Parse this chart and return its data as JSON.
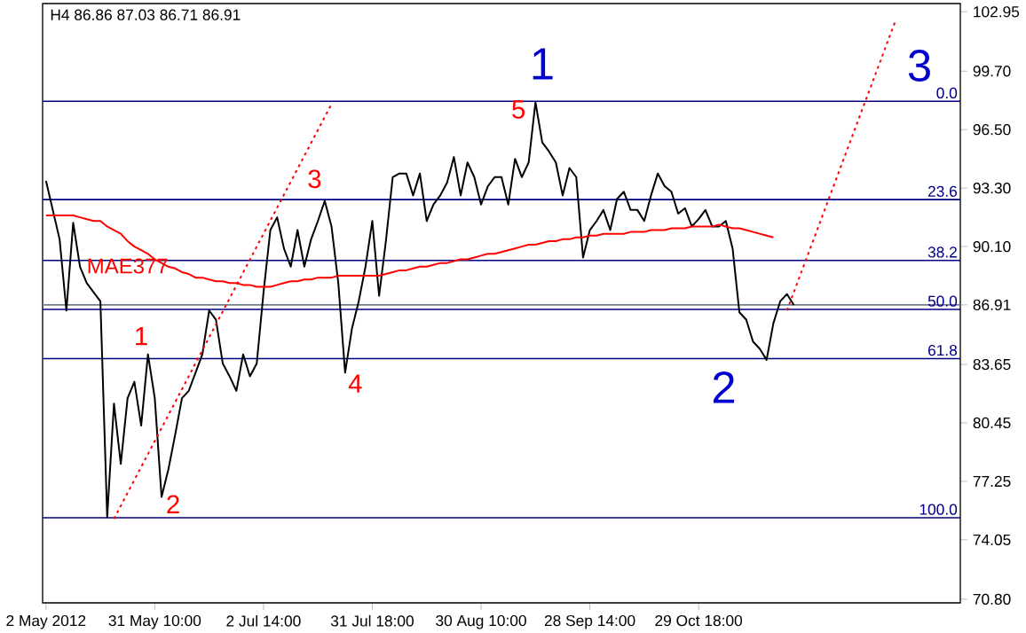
{
  "chart_data": {
    "type": "line",
    "title": "H4 86.86 87.03 86.71 86.91",
    "categories": [
      "2 May 2012",
      null,
      null,
      null,
      null,
      null,
      null,
      null,
      null,
      null,
      null,
      null,
      null,
      null,
      null,
      null,
      "31 May 10:00",
      null,
      null,
      null,
      null,
      null,
      null,
      null,
      null,
      null,
      null,
      null,
      null,
      null,
      null,
      null,
      "2 Jul 14:00",
      null,
      null,
      null,
      null,
      null,
      null,
      null,
      null,
      null,
      null,
      null,
      null,
      null,
      null,
      null,
      "31 Jul 18:00",
      null,
      null,
      null,
      null,
      null,
      null,
      null,
      null,
      null,
      null,
      null,
      null,
      null,
      null,
      null,
      "30 Aug 10:00",
      null,
      null,
      null,
      null,
      null,
      null,
      null,
      null,
      null,
      null,
      null,
      null,
      null,
      null,
      null,
      "28 Sep 14:00",
      null,
      null,
      null,
      null,
      null,
      null,
      null,
      null,
      null,
      null,
      null,
      null,
      null,
      null,
      null,
      "29 Oct 18:00",
      null,
      null,
      null,
      null,
      null,
      null,
      null,
      null,
      null,
      null,
      null,
      null,
      null,
      null,
      null,
      null,
      null,
      null,
      null,
      null,
      null,
      null,
      null,
      null,
      null,
      null,
      null,
      null,
      null,
      null,
      null,
      null,
      null,
      null,
      null,
      null,
      null,
      null
    ],
    "ylim": [
      70.6,
      103.4
    ],
    "yticks": [
      {
        "value": 102.95,
        "label": "102.95"
      },
      {
        "value": 99.7,
        "label": "99.70"
      },
      {
        "value": 96.5,
        "label": "96.50"
      },
      {
        "value": 93.3,
        "label": "93.30"
      },
      {
        "value": 90.1,
        "label": "90.10"
      },
      {
        "value": 86.91,
        "label": "86.91"
      },
      {
        "value": 83.65,
        "label": "83.65"
      },
      {
        "value": 80.45,
        "label": "80.45"
      },
      {
        "value": 77.25,
        "label": "77.25"
      },
      {
        "value": 74.05,
        "label": "74.05"
      },
      {
        "value": 70.8,
        "label": "70.80"
      }
    ],
    "series": [
      {
        "color": "#000000",
        "values": [
          93.7,
          92.1,
          90.5,
          86.6,
          91.4,
          89.0,
          88.1,
          87.6,
          87.1,
          75.3,
          81.5,
          78.2,
          81.8,
          82.7,
          80.3,
          84.2,
          81.8,
          76.4,
          77.9,
          79.8,
          81.8,
          82.2,
          83.2,
          84.2,
          86.6,
          86.1,
          83.7,
          83.0,
          82.2,
          84.2,
          83.0,
          83.7,
          87.6,
          91.0,
          91.7,
          90.0,
          89.0,
          91.0,
          89.0,
          90.5,
          91.5,
          92.6,
          91.2,
          88.1,
          83.2,
          85.6,
          87.1,
          89.0,
          91.5,
          87.4,
          90.4,
          93.9,
          94.1,
          94.1,
          92.9,
          94.1,
          91.5,
          92.4,
          92.9,
          93.6,
          95.0,
          92.9,
          94.7,
          93.9,
          92.4,
          93.4,
          93.9,
          93.9,
          92.4,
          94.9,
          93.9,
          94.7,
          98.0,
          95.8,
          95.3,
          94.7,
          92.9,
          94.4,
          93.9,
          89.5,
          91.0,
          91.5,
          92.1,
          91.0,
          92.7,
          93.1,
          92.1,
          92.1,
          91.5,
          92.9,
          94.1,
          93.4,
          93.1,
          91.9,
          92.2,
          91.2,
          91.6,
          92.1,
          91.2,
          91.2,
          91.5,
          90.0,
          86.5,
          86.1,
          84.9,
          84.5,
          83.9,
          85.9,
          87.1,
          87.5,
          86.9,
          null,
          null,
          null,
          null,
          null,
          null,
          null,
          null,
          null,
          null,
          null,
          null,
          null,
          null,
          null,
          null,
          null,
          null,
          null,
          null,
          null,
          null,
          null,
          null
        ]
      },
      {
        "name": "MAE377",
        "color": "#ff0000",
        "values": [
          91.8,
          91.8,
          91.8,
          91.8,
          91.8,
          91.7,
          91.6,
          91.5,
          91.5,
          91.2,
          91.0,
          90.8,
          90.4,
          90.1,
          89.9,
          89.7,
          89.4,
          89.2,
          89.0,
          88.9,
          88.7,
          88.6,
          88.4,
          88.4,
          88.3,
          88.2,
          88.2,
          88.1,
          88.1,
          88.0,
          88.0,
          87.9,
          87.9,
          87.9,
          88.0,
          88.1,
          88.2,
          88.2,
          88.3,
          88.3,
          88.4,
          88.4,
          88.4,
          88.5,
          88.5,
          88.5,
          88.5,
          88.5,
          88.5,
          88.5,
          88.6,
          88.7,
          88.8,
          88.8,
          88.9,
          89.0,
          89.0,
          89.1,
          89.2,
          89.2,
          89.3,
          89.4,
          89.4,
          89.5,
          89.6,
          89.7,
          89.7,
          89.8,
          89.9,
          90.0,
          90.1,
          90.2,
          90.2,
          90.3,
          90.4,
          90.4,
          90.5,
          90.5,
          90.6,
          90.6,
          90.7,
          90.7,
          90.8,
          90.8,
          90.8,
          90.8,
          90.9,
          90.9,
          90.9,
          91.0,
          91.0,
          91.0,
          91.1,
          91.1,
          91.1,
          91.2,
          91.2,
          91.2,
          91.2,
          91.3,
          91.2,
          91.1,
          91.1,
          91.0,
          90.9,
          90.8,
          90.7,
          90.6,
          null,
          null,
          null,
          null,
          null,
          null,
          null,
          null,
          null,
          null,
          null,
          null,
          null,
          null,
          null,
          null,
          null,
          null,
          null,
          null,
          null,
          null,
          null,
          null,
          null,
          null,
          null
        ]
      },
      {
        "color": "#ff0000",
        "line_style": "dotted",
        "values": [
          null,
          null,
          null,
          null,
          null,
          null,
          null,
          null,
          null,
          null,
          75.2,
          null,
          null,
          null,
          null,
          null,
          null,
          null,
          null,
          null,
          null,
          null,
          null,
          null,
          null,
          null,
          null,
          null,
          null,
          null,
          null,
          null,
          null,
          null,
          null,
          null,
          null,
          null,
          null,
          null,
          null,
          null,
          97.9,
          null,
          null,
          null,
          null,
          null,
          null,
          null,
          null,
          null,
          null,
          null,
          null,
          null,
          null,
          null,
          null,
          null,
          null,
          null,
          null,
          null,
          null,
          null,
          null,
          null,
          null,
          null,
          null,
          null,
          null,
          null,
          null,
          null,
          null,
          null,
          null,
          null,
          null,
          null,
          null,
          null,
          null,
          null,
          null,
          null,
          null,
          null,
          null,
          null,
          null,
          null,
          null,
          null,
          null,
          null,
          null,
          null,
          null,
          null,
          null,
          null,
          null,
          null,
          null,
          null,
          null,
          null,
          null,
          null,
          null,
          null,
          null,
          null,
          null,
          null,
          null,
          null,
          null,
          null,
          null,
          null,
          null,
          null,
          null,
          null,
          null,
          null,
          null,
          null,
          null,
          null,
          null
        ]
      },
      {
        "color": "#ff0000",
        "line_style": "dotted",
        "values": [
          null,
          null,
          null,
          null,
          null,
          null,
          null,
          null,
          null,
          null,
          null,
          null,
          null,
          null,
          null,
          null,
          null,
          null,
          null,
          null,
          null,
          null,
          null,
          null,
          null,
          null,
          null,
          null,
          null,
          null,
          null,
          null,
          null,
          null,
          null,
          null,
          null,
          null,
          null,
          null,
          null,
          null,
          null,
          null,
          null,
          null,
          null,
          null,
          null,
          null,
          null,
          null,
          null,
          null,
          null,
          null,
          null,
          null,
          null,
          null,
          null,
          null,
          null,
          null,
          null,
          null,
          null,
          null,
          null,
          null,
          null,
          null,
          null,
          null,
          null,
          null,
          null,
          null,
          null,
          null,
          null,
          null,
          null,
          null,
          null,
          null,
          null,
          null,
          null,
          null,
          null,
          null,
          null,
          null,
          null,
          null,
          null,
          null,
          null,
          null,
          null,
          null,
          null,
          null,
          null,
          null,
          null,
          null,
          null,
          86.6,
          null,
          null,
          null,
          null,
          null,
          null,
          null,
          null,
          null,
          null,
          null,
          null,
          null,
          null,
          null,
          102.5,
          null,
          null,
          null,
          null,
          null,
          null,
          null,
          null,
          null
        ]
      }
    ],
    "ref_lines": [
      {
        "axis": "y",
        "value": 98.05,
        "color": "#000080"
      },
      {
        "axis": "y",
        "value": 92.67,
        "color": "#000080"
      },
      {
        "axis": "y",
        "value": 89.34,
        "color": "#000080"
      },
      {
        "axis": "y",
        "value": 86.66,
        "color": "#000080"
      },
      {
        "axis": "y",
        "value": 83.97,
        "color": "#000080"
      },
      {
        "axis": "y",
        "value": 75.26,
        "color": "#000080"
      },
      {
        "axis": "y",
        "value": 86.91,
        "color": "#708090"
      }
    ],
    "annotations": [
      {
        "text": "0.0",
        "y": 98.05
      },
      {
        "text": "23.6",
        "y": 92.67
      },
      {
        "text": "38.2",
        "y": 89.34
      },
      {
        "text": "50.0",
        "y": 86.66
      },
      {
        "text": "61.8",
        "y": 83.97
      },
      {
        "text": "100.0",
        "y": 75.26
      },
      "1",
      "2",
      "3",
      "4",
      "5",
      "1",
      "2",
      "3"
    ],
    "grid": false,
    "marker": "none",
    "line_style": "solid"
  }
}
